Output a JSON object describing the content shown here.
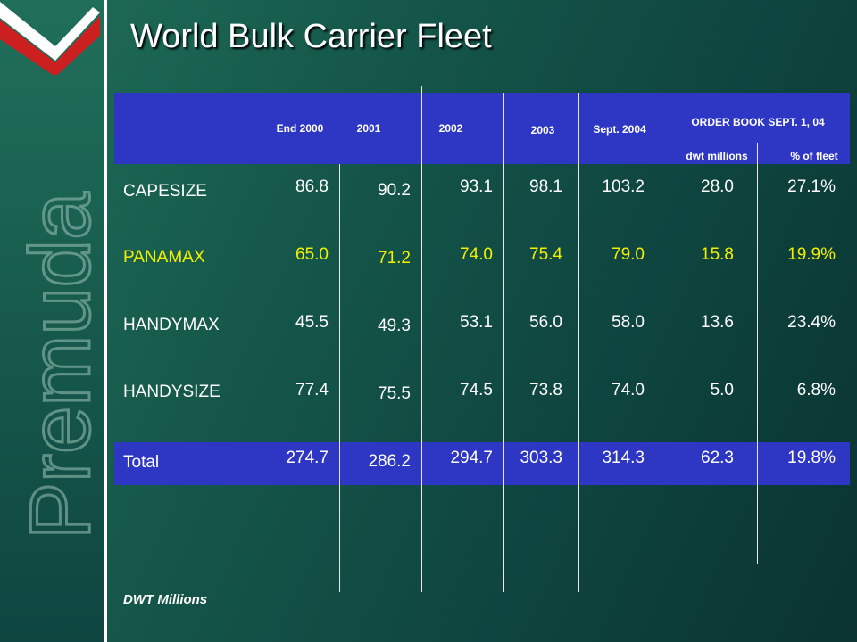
{
  "title": "World Bulk Carrier Fleet",
  "watermark_text": "Premuda",
  "columns": [
    "End 2000",
    "2001",
    "2002",
    "2003",
    "Sept. 2004"
  ],
  "order_book": {
    "title": "ORDER BOOK SEPT. 1, 04",
    "sub_dwt": "dwt millions",
    "sub_pct": "% of fleet"
  },
  "rows": [
    {
      "label": "CAPESIZE",
      "values": [
        "86.8",
        "90.2",
        "93.1",
        "98.1",
        "103.2",
        "28.0",
        "27.1%"
      ]
    },
    {
      "label": "PANAMAX",
      "values": [
        "65.0",
        "71.2",
        "74.0",
        "75.4",
        "79.0",
        "15.8",
        "19.9%"
      ]
    },
    {
      "label": "HANDYMAX",
      "values": [
        "45.5",
        "49.3",
        "53.1",
        "56.0",
        "58.0",
        "13.6",
        "23.4%"
      ]
    },
    {
      "label": "HANDYSIZE",
      "values": [
        "77.4",
        "75.5",
        "74.5",
        "73.8",
        "74.0",
        "5.0",
        "6.8%"
      ]
    },
    {
      "label": "Total",
      "values": [
        "274.7",
        "286.2",
        "294.7",
        "303.3",
        "314.3",
        "62.3",
        "19.8%"
      ]
    }
  ],
  "footnote": "DWT Millions",
  "colors": {
    "header_band": "#2e37c4",
    "panamax_text": "#f4f000",
    "logo_red": "#cc1f1f"
  }
}
